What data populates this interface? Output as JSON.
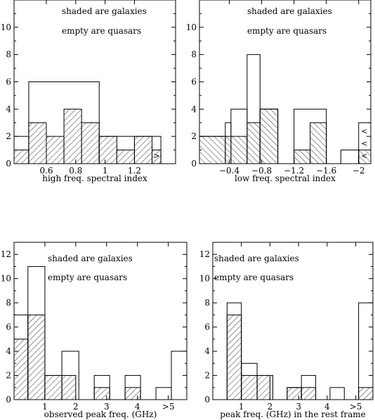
{
  "chart_data": [
    {
      "type": "histogram",
      "xlabel": "high freq. spectral index",
      "xlim": [
        0.38,
        1.48
      ],
      "ylim": [
        0,
        12
      ],
      "xticks": [
        0.6,
        0.8,
        1.0,
        1.2
      ],
      "xtick_labels": [
        "0.6",
        "0.8",
        "1",
        "1.2"
      ],
      "yticks": [
        0,
        2,
        4,
        6,
        8,
        10
      ],
      "ytick_labels": [
        "0",
        "2",
        "4",
        "6",
        "8",
        "10"
      ],
      "notes": [
        "shaded are galaxies",
        "empty are quasars"
      ],
      "series": [
        {
          "name": "galaxies",
          "style": "shaded",
          "hatch": "/",
          "bins": [
            [
              0.38,
              0.48,
              1
            ],
            [
              0.48,
              0.6,
              3
            ],
            [
              0.6,
              0.72,
              2
            ],
            [
              0.72,
              0.84,
              4
            ],
            [
              0.84,
              0.96,
              3
            ],
            [
              0.96,
              1.08,
              2
            ],
            [
              1.08,
              1.2,
              1
            ],
            [
              1.2,
              1.32,
              2
            ],
            [
              1.32,
              1.38,
              1
            ]
          ]
        },
        {
          "name": "total",
          "style": "empty",
          "bins": [
            [
              0.38,
              0.48,
              2
            ],
            [
              0.48,
              0.96,
              6
            ],
            [
              0.96,
              1.2,
              2
            ],
            [
              1.2,
              1.38,
              2
            ]
          ]
        }
      ],
      "markers": [
        {
          "x": 1.35,
          "y": 0.6,
          "text": ">"
        }
      ]
    },
    {
      "type": "histogram",
      "xlabel": "low freq. spectral index",
      "xlim": [
        -0.03,
        -2.15
      ],
      "ylim": [
        0,
        12
      ],
      "xticks": [
        -0.4,
        -0.8,
        -1.2,
        -1.6,
        -2.0
      ],
      "xtick_labels": [
        "−0.4",
        "−0.8",
        "−1.2",
        "−1.6",
        "−2"
      ],
      "yticks": [
        0,
        2,
        4,
        6,
        8,
        10
      ],
      "ytick_labels": [
        "0",
        "2",
        "4",
        "6",
        "8",
        "10"
      ],
      "notes": [
        "shaded are galaxies",
        "empty are quasars"
      ],
      "series": [
        {
          "name": "galaxies",
          "style": "shaded",
          "hatch": "\\",
          "bins": [
            [
              -0.03,
              -0.62,
              2
            ],
            [
              -0.62,
              -0.78,
              3
            ],
            [
              -0.78,
              -1.0,
              4
            ],
            [
              -1.2,
              -1.4,
              1
            ],
            [
              -1.4,
              -1.6,
              3
            ],
            [
              -2.0,
              -2.15,
              1
            ]
          ]
        },
        {
          "name": "total",
          "style": "empty",
          "bins": [
            [
              -0.03,
              -0.35,
              2
            ],
            [
              -0.35,
              -0.42,
              3
            ],
            [
              -0.42,
              -0.62,
              4
            ],
            [
              -0.62,
              -0.78,
              8
            ],
            [
              -0.78,
              -1.0,
              4
            ],
            [
              -1.2,
              -1.6,
              4
            ],
            [
              -1.78,
              -2.0,
              1
            ],
            [
              -2.0,
              -2.15,
              3
            ]
          ]
        }
      ],
      "markers": [
        {
          "x": -2.07,
          "y": 2.4,
          "text": "<"
        },
        {
          "x": -2.07,
          "y": 1.5,
          "text": "<"
        },
        {
          "x": -2.07,
          "y": 0.6,
          "text": "<"
        }
      ]
    },
    {
      "type": "histogram",
      "xlabel": "observed peak freq. (GHz)",
      "xlim": [
        0,
        5.6
      ],
      "ylim": [
        0,
        13
      ],
      "xticks": [
        1,
        2,
        3,
        4,
        5
      ],
      "xtick_labels": [
        "1",
        "2",
        "3",
        "4",
        ">5"
      ],
      "yticks": [
        0,
        2,
        4,
        6,
        8,
        10,
        12
      ],
      "ytick_labels": [
        "0",
        "2",
        "4",
        "6",
        "8",
        "10",
        "12"
      ],
      "notes": [
        "shaded are galaxies",
        "empty are quasars"
      ],
      "series": [
        {
          "name": "galaxies",
          "style": "shaded",
          "hatch": "/",
          "bins": [
            [
              0,
              0.45,
              5
            ],
            [
              0.45,
              1.0,
              7
            ],
            [
              1.0,
              1.55,
              2
            ],
            [
              1.55,
              2.0,
              2
            ],
            [
              2.6,
              3.1,
              1
            ],
            [
              3.6,
              4.1,
              1
            ]
          ]
        },
        {
          "name": "total",
          "style": "empty",
          "bins": [
            [
              0,
              0.45,
              7
            ],
            [
              0.45,
              1.0,
              11
            ],
            [
              1.0,
              1.55,
              2
            ],
            [
              1.55,
              2.1,
              4
            ],
            [
              2.6,
              3.1,
              2
            ],
            [
              3.6,
              4.1,
              2
            ],
            [
              4.6,
              5.1,
              1
            ],
            [
              5.1,
              5.6,
              4
            ]
          ]
        }
      ]
    },
    {
      "type": "histogram",
      "xlabel": "peak freq. (GHz) in the rest frame",
      "xlim": [
        0,
        5.6
      ],
      "ylim": [
        0,
        13
      ],
      "xticks": [
        1,
        2,
        3,
        4,
        5
      ],
      "xtick_labels": [
        "1",
        "2",
        "3",
        "4",
        ">5"
      ],
      "yticks": [
        0,
        2,
        4,
        6,
        8,
        10,
        12
      ],
      "ytick_labels": [
        "0",
        "2",
        "4",
        "6",
        "8",
        "10",
        "12"
      ],
      "notes": [
        "shaded are galaxies",
        "empty are quasars"
      ],
      "series": [
        {
          "name": "galaxies",
          "style": "shaded",
          "hatch": "/",
          "bins": [
            [
              0.5,
              1.0,
              7
            ],
            [
              1.0,
              1.55,
              2
            ],
            [
              1.55,
              2.0,
              2
            ],
            [
              2.6,
              3.1,
              1
            ],
            [
              3.1,
              3.6,
              1
            ],
            [
              5.1,
              5.6,
              1
            ]
          ]
        },
        {
          "name": "total",
          "style": "empty",
          "bins": [
            [
              0.5,
              1.0,
              8
            ],
            [
              1.0,
              1.55,
              3
            ],
            [
              1.55,
              2.1,
              2
            ],
            [
              2.6,
              3.1,
              1
            ],
            [
              3.1,
              3.6,
              2
            ],
            [
              4.1,
              4.6,
              1
            ],
            [
              5.1,
              5.6,
              8
            ]
          ]
        }
      ]
    }
  ]
}
